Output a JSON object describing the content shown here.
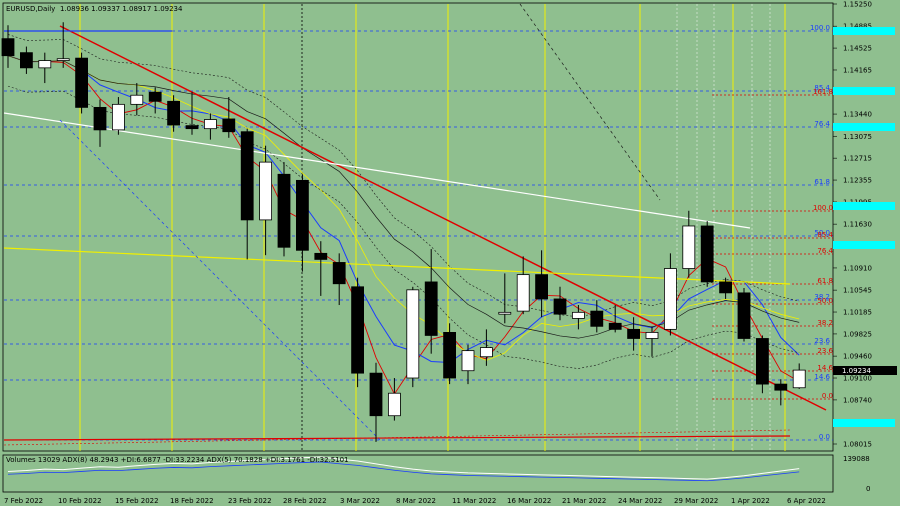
{
  "header": {
    "symbol_label": "EURUSD,Daily",
    "ohlc_label": "1.08936 1.09337 1.08917 1.09234"
  },
  "volume_header": "Volumes 13029  ADX(8) 48.2943 +DI:6.6877 -DI:33.2234  ADX(5) 70.1828 +DI:3.1761 -DI:32.5101",
  "colors": {
    "background": "#8fbf8f",
    "bull_body": "#ffffff",
    "bear_body": "#000000",
    "red_trend": "#e00000",
    "white_trend": "#ffffff",
    "yellow_trend": "#f0f000",
    "fib_blue": "#1a3cff",
    "fib_red": "#e00000",
    "price_badge": "#000000",
    "cyan_badge": "#00ffff"
  },
  "chart_data": {
    "type": "candlestick",
    "symbol": "EURUSD",
    "timeframe": "Daily",
    "last_price": "1.09234",
    "ylim": [
      1.077,
      1.153
    ],
    "price_ticks": [
      "1.15250",
      "1.14885",
      "1.14525",
      "1.14165",
      "1.13800",
      "1.13440",
      "1.13075",
      "1.12715",
      "1.12355",
      "1.11995",
      "1.11630",
      "1.11270",
      "1.10910",
      "1.10545",
      "1.10185",
      "1.09825",
      "1.09460",
      "1.09100",
      "1.08740",
      "1.08380",
      "1.08015"
    ],
    "date_labels": [
      "7 Feb 2022",
      "10 Feb 2022",
      "15 Feb 2022",
      "18 Feb 2022",
      "23 Feb 2022",
      "28 Feb 2022",
      "3 Mar 2022",
      "8 Mar 2022",
      "11 Mar 2022",
      "16 Mar 2022",
      "21 Mar 2022",
      "24 Mar 2022",
      "29 Mar 2022",
      "1 Apr 2022",
      "6 Apr 2022"
    ],
    "candles": [
      {
        "o": 1.1468,
        "h": 1.149,
        "l": 1.142,
        "c": 1.144
      },
      {
        "o": 1.1445,
        "h": 1.1455,
        "l": 1.141,
        "c": 1.142
      },
      {
        "o": 1.142,
        "h": 1.1445,
        "l": 1.1395,
        "c": 1.1432
      },
      {
        "o": 1.1432,
        "h": 1.1495,
        "l": 1.142,
        "c": 1.1435
      },
      {
        "o": 1.1436,
        "h": 1.1445,
        "l": 1.1345,
        "c": 1.1355
      },
      {
        "o": 1.1355,
        "h": 1.1368,
        "l": 1.129,
        "c": 1.1318
      },
      {
        "o": 1.1318,
        "h": 1.1372,
        "l": 1.131,
        "c": 1.136
      },
      {
        "o": 1.136,
        "h": 1.1395,
        "l": 1.1342,
        "c": 1.1375
      },
      {
        "o": 1.138,
        "h": 1.1388,
        "l": 1.1345,
        "c": 1.1365
      },
      {
        "o": 1.1365,
        "h": 1.1375,
        "l": 1.1315,
        "c": 1.1326
      },
      {
        "o": 1.1325,
        "h": 1.138,
        "l": 1.131,
        "c": 1.132
      },
      {
        "o": 1.132,
        "h": 1.1345,
        "l": 1.1302,
        "c": 1.1335
      },
      {
        "o": 1.1336,
        "h": 1.1372,
        "l": 1.1305,
        "c": 1.1315
      },
      {
        "o": 1.1315,
        "h": 1.132,
        "l": 1.1105,
        "c": 1.117
      },
      {
        "o": 1.117,
        "h": 1.1292,
        "l": 1.1112,
        "c": 1.1265
      },
      {
        "o": 1.1245,
        "h": 1.1265,
        "l": 1.111,
        "c": 1.1125
      },
      {
        "o": 1.1235,
        "h": 1.1245,
        "l": 1.1085,
        "c": 1.112
      },
      {
        "o": 1.1115,
        "h": 1.1135,
        "l": 1.1045,
        "c": 1.1105
      },
      {
        "o": 1.11,
        "h": 1.1115,
        "l": 1.103,
        "c": 1.1065
      },
      {
        "o": 1.106,
        "h": 1.1075,
        "l": 1.0895,
        "c": 1.0918
      },
      {
        "o": 1.0918,
        "h": 1.0935,
        "l": 1.0805,
        "c": 1.0848
      },
      {
        "o": 1.0848,
        "h": 1.091,
        "l": 1.084,
        "c": 1.0885
      },
      {
        "o": 1.091,
        "h": 1.106,
        "l": 1.0895,
        "c": 1.1055
      },
      {
        "o": 1.1068,
        "h": 1.1122,
        "l": 1.095,
        "c": 1.098
      },
      {
        "o": 1.0985,
        "h": 1.1,
        "l": 1.09,
        "c": 1.091
      },
      {
        "o": 1.0922,
        "h": 1.0965,
        "l": 1.09,
        "c": 1.0955
      },
      {
        "o": 1.0945,
        "h": 1.099,
        "l": 1.093,
        "c": 1.096
      },
      {
        "o": 1.1015,
        "h": 1.1082,
        "l": 1.1,
        "c": 1.1018
      },
      {
        "o": 1.102,
        "h": 1.111,
        "l": 1.1015,
        "c": 1.108
      },
      {
        "o": 1.108,
        "h": 1.112,
        "l": 1.101,
        "c": 1.104
      },
      {
        "o": 1.104,
        "h": 1.106,
        "l": 1.1005,
        "c": 1.1015
      },
      {
        "o": 1.1008,
        "h": 1.103,
        "l": 1.099,
        "c": 1.1018
      },
      {
        "o": 1.102,
        "h": 1.1038,
        "l": 1.0985,
        "c": 1.0995
      },
      {
        "o": 1.1,
        "h": 1.103,
        "l": 1.0985,
        "c": 1.099
      },
      {
        "o": 1.099,
        "h": 1.101,
        "l": 1.0955,
        "c": 1.0975
      },
      {
        "o": 1.0975,
        "h": 1.0995,
        "l": 1.0945,
        "c": 1.0985
      },
      {
        "o": 1.099,
        "h": 1.1115,
        "l": 1.098,
        "c": 1.109
      },
      {
        "o": 1.109,
        "h": 1.1185,
        "l": 1.1075,
        "c": 1.116
      },
      {
        "o": 1.116,
        "h": 1.1168,
        "l": 1.106,
        "c": 1.1068
      },
      {
        "o": 1.1068,
        "h": 1.1075,
        "l": 1.104,
        "c": 1.105
      },
      {
        "o": 1.105,
        "h": 1.1058,
        "l": 1.097,
        "c": 1.0975
      },
      {
        "o": 1.0975,
        "h": 1.098,
        "l": 1.0885,
        "c": 1.09
      },
      {
        "o": 1.09,
        "h": 1.0908,
        "l": 1.0865,
        "c": 1.089
      },
      {
        "o": 1.0894,
        "h": 1.0934,
        "l": 1.0892,
        "c": 1.0923
      }
    ],
    "fib_blue_levels": [
      "100.0",
      "85.4",
      "76.4",
      "61.8",
      "50.0",
      "38.2",
      "23.6",
      "14.6",
      "0.0"
    ],
    "fib_red_levels": [
      "161.8",
      "100.0",
      "85.4",
      "76.4",
      "61.8",
      "50.0",
      "38.2",
      "23.6",
      "14.6",
      "0.0"
    ],
    "volume_scale": {
      "max": "139088",
      "min": "0"
    },
    "volume_line": [
      78000,
      82000,
      88000,
      86000,
      92000,
      98000,
      96000,
      102000,
      108000,
      112000,
      110000,
      116000,
      120000,
      124000,
      128000,
      132000,
      136000,
      139088,
      130000,
      122000,
      110000,
      98000,
      88000,
      80000,
      76000,
      72000,
      70000,
      68000,
      66000,
      64000,
      62000,
      60000,
      58000,
      56000,
      54000,
      52000,
      50000,
      48000,
      46000,
      52000,
      60000,
      70000,
      80000,
      90000
    ]
  }
}
